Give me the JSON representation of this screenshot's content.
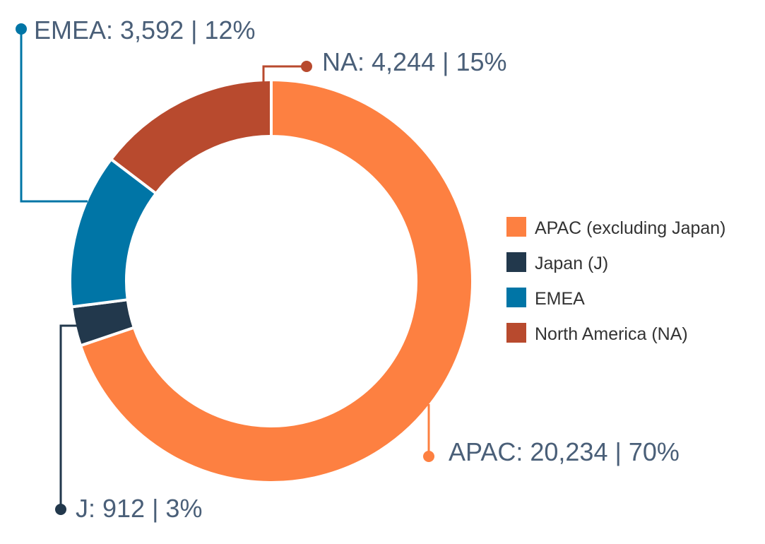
{
  "chart_data": {
    "type": "pie",
    "donut": true,
    "title": "",
    "categories": [
      "APAC (excluding Japan)",
      "Japan (J)",
      "EMEA",
      "North America (NA)"
    ],
    "values": [
      20234,
      912,
      3592,
      4244
    ],
    "percentages": [
      70,
      3,
      12,
      15
    ],
    "colors": [
      "#fd8041",
      "#22384c",
      "#0075a6",
      "#b84a2e"
    ],
    "callout_labels": [
      "APAC: 20,234 | 70%",
      "J: 912 | 3%",
      "EMEA: 3,592 | 12%",
      "NA: 4,244 | 15%"
    ],
    "legend": {
      "position": "right",
      "entries": [
        "APAC (excluding Japan)",
        "Japan (J)",
        "EMEA",
        "North America (NA)"
      ]
    }
  }
}
